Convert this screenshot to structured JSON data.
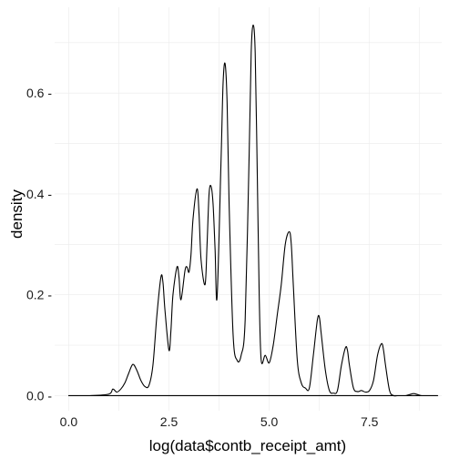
{
  "chart_data": {
    "type": "line",
    "xlabel": "log(data$contb_receipt_amt)",
    "ylabel": "density",
    "xlim": [
      -0.35,
      9.3
    ],
    "ylim": [
      -0.03,
      0.77
    ],
    "xticks": [
      0.0,
      2.5,
      5.0,
      7.5
    ],
    "xtick_labels": [
      "0.0",
      "2.5",
      "5.0",
      "7.5"
    ],
    "yticks": [
      0.0,
      0.2,
      0.4,
      0.6
    ],
    "ytick_labels": [
      "0.0 -",
      "0.2 -",
      "0.4 -",
      "0.6 -"
    ],
    "grid": true,
    "colors": {
      "line": "#000000",
      "grid": "#ebebeb",
      "background": "#ffffff"
    },
    "series": [
      {
        "x": [
          0.0,
          0.5,
          1.0,
          1.1,
          1.2,
          1.3,
          1.4,
          1.5,
          1.6,
          1.7,
          1.8,
          1.9,
          2.0,
          2.1,
          2.2,
          2.3,
          2.35,
          2.4,
          2.5,
          2.55,
          2.6,
          2.7,
          2.75,
          2.8,
          2.9,
          2.95,
          3.0,
          3.05,
          3.1,
          3.2,
          3.25,
          3.3,
          3.4,
          3.45,
          3.5,
          3.55,
          3.6,
          3.65,
          3.7,
          3.8,
          3.85,
          3.9,
          3.95,
          4.0,
          4.1,
          4.2,
          4.3,
          4.4,
          4.5,
          4.55,
          4.6,
          4.65,
          4.7,
          4.75,
          4.8,
          4.9,
          5.0,
          5.1,
          5.2,
          5.3,
          5.4,
          5.5,
          5.55,
          5.6,
          5.7,
          5.8,
          5.9,
          6.0,
          6.1,
          6.2,
          6.25,
          6.3,
          6.4,
          6.5,
          6.6,
          6.7,
          6.8,
          6.9,
          6.95,
          7.0,
          7.1,
          7.2,
          7.3,
          7.4,
          7.5,
          7.6,
          7.7,
          7.8,
          7.85,
          7.9,
          8.0,
          8.1,
          8.2,
          8.3,
          8.4,
          8.5,
          8.6,
          8.7,
          8.8,
          9.0,
          9.2
        ],
        "values": [
          0.0,
          0.0,
          0.003,
          0.013,
          0.007,
          0.013,
          0.025,
          0.045,
          0.062,
          0.05,
          0.03,
          0.018,
          0.02,
          0.06,
          0.16,
          0.235,
          0.225,
          0.17,
          0.09,
          0.13,
          0.2,
          0.255,
          0.235,
          0.19,
          0.248,
          0.255,
          0.245,
          0.28,
          0.35,
          0.41,
          0.36,
          0.27,
          0.22,
          0.3,
          0.4,
          0.415,
          0.38,
          0.29,
          0.195,
          0.47,
          0.62,
          0.658,
          0.58,
          0.38,
          0.12,
          0.07,
          0.08,
          0.15,
          0.48,
          0.68,
          0.735,
          0.68,
          0.45,
          0.2,
          0.07,
          0.08,
          0.065,
          0.1,
          0.16,
          0.22,
          0.3,
          0.325,
          0.3,
          0.22,
          0.07,
          0.025,
          0.015,
          0.015,
          0.08,
          0.15,
          0.155,
          0.12,
          0.05,
          0.01,
          0.005,
          0.01,
          0.06,
          0.095,
          0.09,
          0.06,
          0.015,
          0.008,
          0.01,
          0.007,
          0.01,
          0.03,
          0.08,
          0.103,
          0.09,
          0.06,
          0.01,
          0.0,
          0.0,
          0.0,
          0.0,
          0.002,
          0.004,
          0.002,
          0.0,
          0.0,
          0.0
        ]
      }
    ]
  }
}
